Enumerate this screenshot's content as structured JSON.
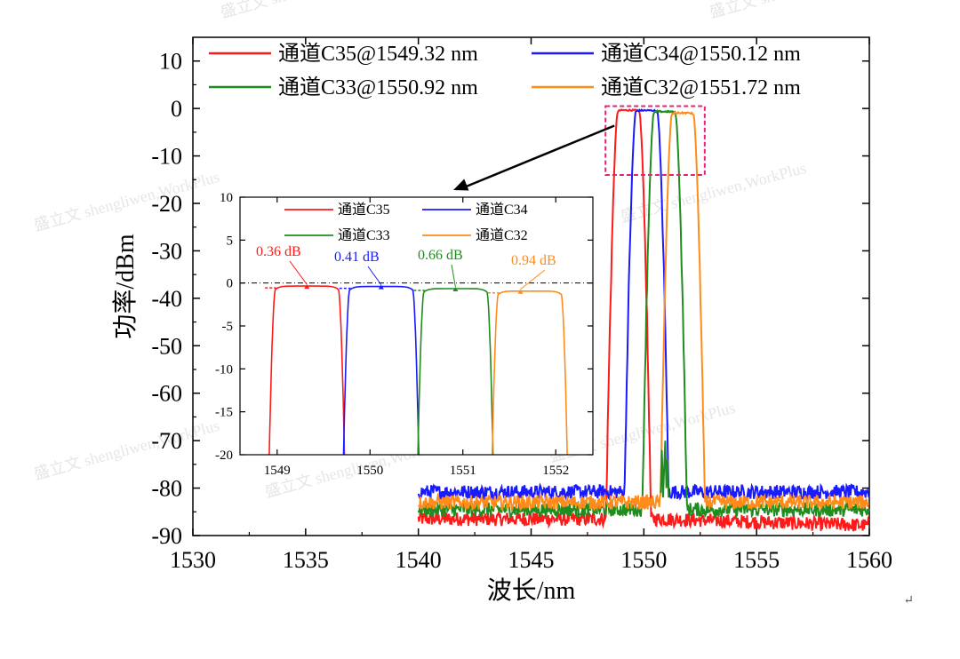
{
  "chart_data": [
    {
      "type": "line",
      "xlabel": "波长/nm",
      "ylabel": "功率/dBm",
      "xlim": [
        1530,
        1560
      ],
      "ylim": [
        -90,
        15
      ],
      "xticks": [
        "1530",
        "1535",
        "1540",
        "1545",
        "1550",
        "1555",
        "1560"
      ],
      "yticks": [
        "10",
        "0",
        "-10",
        "-20",
        "-30",
        "-40",
        "-50",
        "-60",
        "-70",
        "-80",
        "-90"
      ],
      "noise_floor": {
        "x_start": 1540,
        "x_end": 1560
      },
      "legend_position": "top",
      "series": [
        {
          "name": "通道C35@1549.32 nm",
          "color": "#ff1a1a",
          "center": 1549.32,
          "peak": -0.36,
          "floor": -86.5
        },
        {
          "name": "通道C34@1550.12 nm",
          "color": "#1a1aff",
          "center": 1550.12,
          "peak": -0.41,
          "floor": -80.8
        },
        {
          "name": "通道C33@1550.92 nm",
          "color": "#1f8c1f",
          "center": 1550.92,
          "peak": -0.66,
          "floor": -84.5
        },
        {
          "name": "通道C32@1551.72 nm",
          "color": "#ff8c1a",
          "center": 1551.72,
          "peak": -0.94,
          "floor": -83.0
        }
      ],
      "highlight_box": {
        "x_range": [
          1548.3,
          1552.7
        ],
        "y_range": [
          -14,
          0.5
        ],
        "color": "#e8207a",
        "style": "dashed"
      }
    },
    {
      "type": "line",
      "xlim": [
        1548.6,
        1552.4
      ],
      "ylim": [
        -20,
        10
      ],
      "xticks": [
        "1549",
        "1550",
        "1551",
        "1552"
      ],
      "yticks": [
        "10",
        "5",
        "0",
        "-5",
        "-10",
        "-15",
        "-20"
      ],
      "reference_line": 0,
      "series": [
        {
          "name": "通道C35",
          "color": "#ff1a1a",
          "center": 1549.32,
          "peak": -0.36,
          "annotation": "0.36 dB"
        },
        {
          "name": "通道C34",
          "color": "#1a1aff",
          "center": 1550.12,
          "peak": -0.41,
          "annotation": "0.41 dB"
        },
        {
          "name": "通道C33",
          "color": "#1f8c1f",
          "center": 1550.92,
          "peak": -0.66,
          "annotation": "0.66 dB"
        },
        {
          "name": "通道C32",
          "color": "#ff8c1a",
          "center": 1551.72,
          "peak": -0.94,
          "annotation": "0.94 dB"
        }
      ]
    }
  ],
  "watermark": "盛立文 shengliwen,WorkPlus",
  "return_mark": "↵"
}
